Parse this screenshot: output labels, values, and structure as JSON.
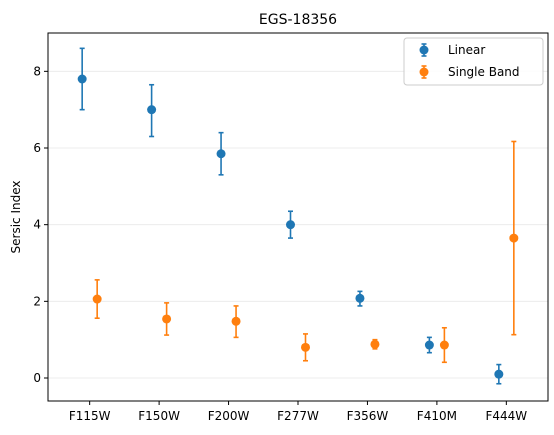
{
  "chart_data": {
    "type": "scatter",
    "title": "EGS-18356",
    "xlabel": "",
    "ylabel": "Sersic Index",
    "categories": [
      "F115W",
      "F150W",
      "F200W",
      "F277W",
      "F356W",
      "F410M",
      "F444W"
    ],
    "ylim": [
      -0.6,
      9.0
    ],
    "yticks": [
      0,
      2,
      4,
      6,
      8
    ],
    "grid": "horizontal",
    "legend_position": "top-right",
    "series": [
      {
        "name": "Linear",
        "color": "#1f77b4",
        "values": [
          7.8,
          7.0,
          5.85,
          4.0,
          2.08,
          0.86,
          0.1
        ],
        "err_low": [
          0.8,
          0.7,
          0.55,
          0.35,
          0.2,
          0.2,
          0.25
        ],
        "err_high": [
          0.8,
          0.65,
          0.55,
          0.35,
          0.18,
          0.2,
          0.25
        ]
      },
      {
        "name": "Single Band",
        "color": "#ff7f0e",
        "values": [
          2.06,
          1.54,
          1.48,
          0.8,
          0.88,
          0.86,
          3.65
        ],
        "err_low": [
          0.5,
          0.42,
          0.42,
          0.35,
          0.12,
          0.45,
          2.52
        ],
        "err_high": [
          0.5,
          0.42,
          0.4,
          0.35,
          0.12,
          0.45,
          2.52
        ]
      }
    ]
  }
}
